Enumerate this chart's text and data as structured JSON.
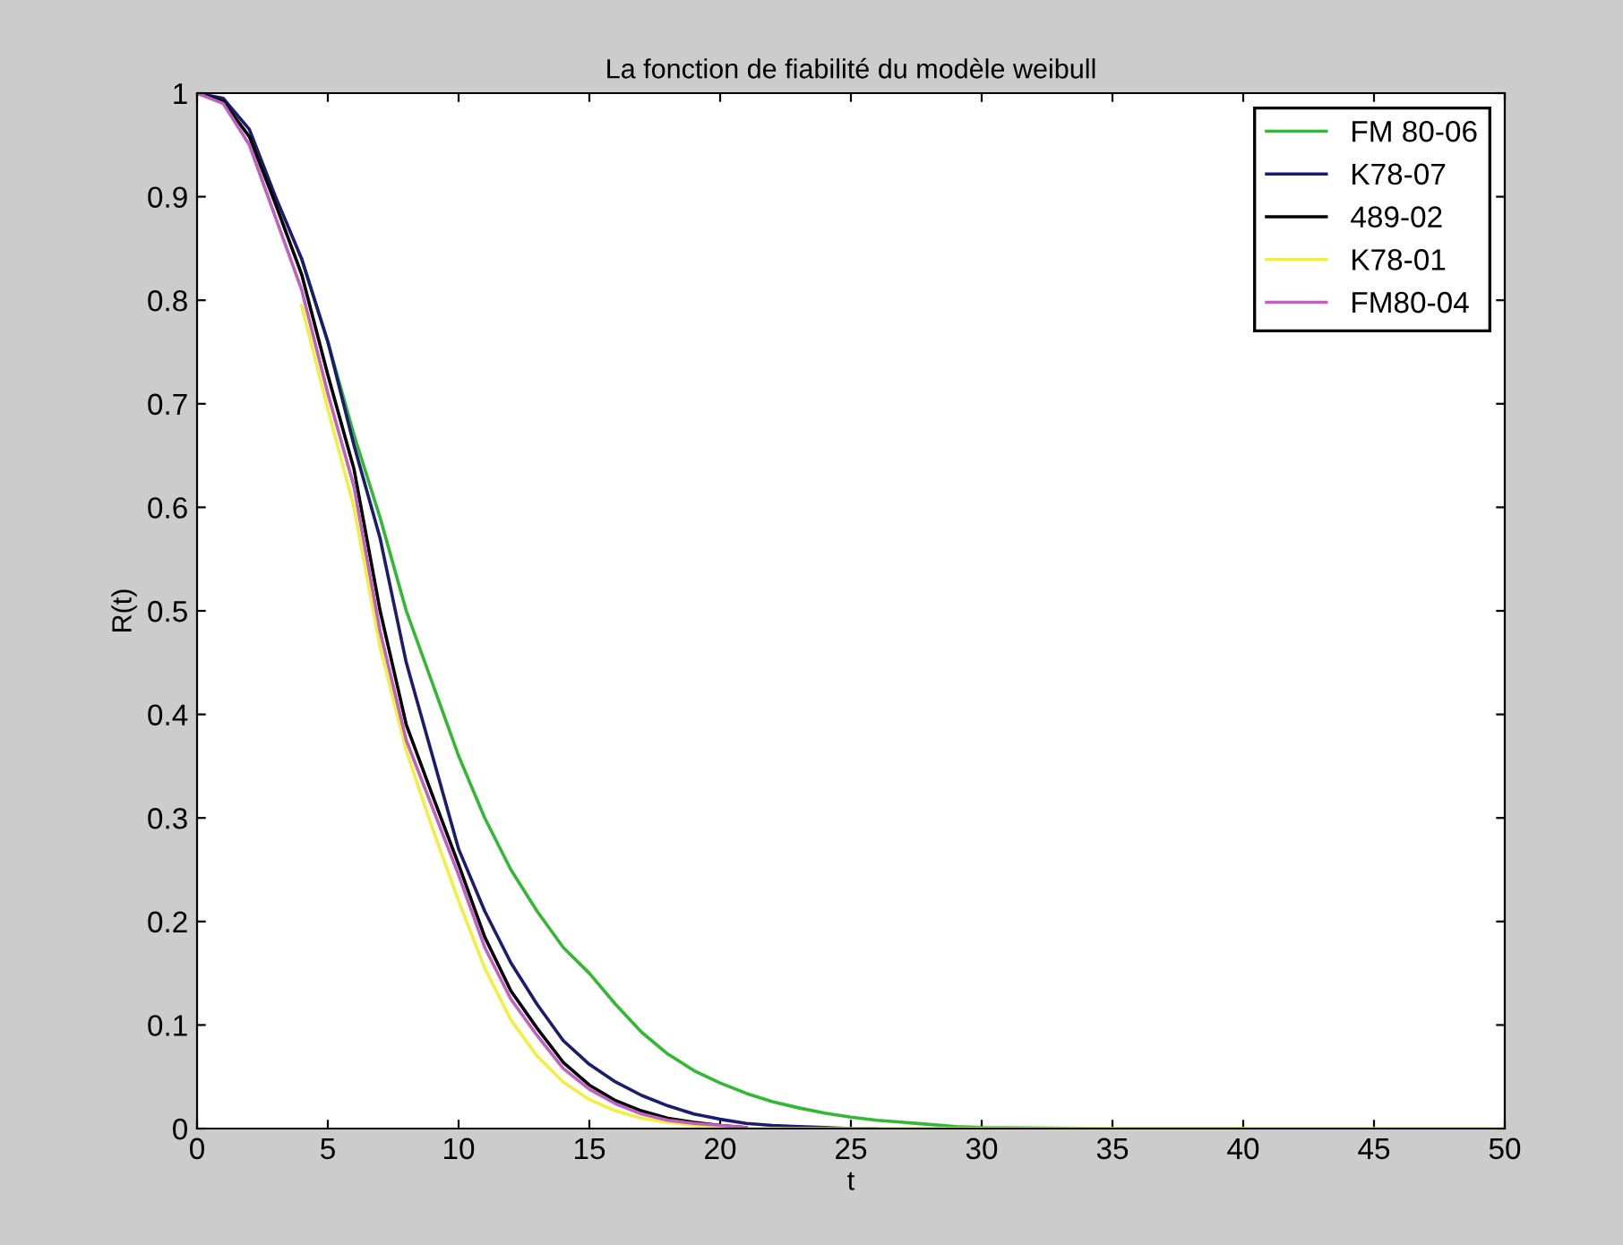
{
  "chart_data": {
    "type": "line",
    "title": "La fonction de fiabilité du modèle weibull",
    "xlabel": "t",
    "ylabel": "R(t)",
    "x": [
      0,
      1,
      2,
      3,
      4,
      5,
      6,
      7,
      8,
      9,
      10,
      11,
      12,
      13,
      14,
      15,
      16,
      17,
      18,
      19,
      20,
      21,
      22,
      23,
      24,
      25,
      26,
      27,
      28,
      29,
      30,
      35,
      40,
      45,
      50
    ],
    "series": [
      {
        "name": "FM 80-06",
        "color": "#33b833",
        "values": [
          null,
          null,
          null,
          null,
          0.84,
          0.76,
          0.67,
          0.59,
          0.5,
          0.43,
          0.36,
          0.3,
          0.25,
          0.21,
          0.175,
          0.15,
          0.12,
          0.093,
          0.072,
          0.056,
          0.044,
          0.034,
          0.026,
          0.02,
          0.015,
          0.011,
          0.008,
          0.006,
          0.004,
          0.002,
          0.001,
          0,
          0,
          null,
          null
        ]
      },
      {
        "name": "K78-07",
        "color": "#1c1c6e",
        "values": [
          1.0,
          0.995,
          0.965,
          0.9,
          0.84,
          0.76,
          0.66,
          0.57,
          0.45,
          0.36,
          0.27,
          0.21,
          0.16,
          0.12,
          0.085,
          0.062,
          0.045,
          0.032,
          0.022,
          0.014,
          0.009,
          0.005,
          0.003,
          0.002,
          0.001,
          0,
          0,
          null,
          null,
          null,
          null,
          null,
          null,
          null,
          null
        ]
      },
      {
        "name": "489-02",
        "color": "#000000",
        "values": [
          1.0,
          0.992,
          0.958,
          0.893,
          0.825,
          0.728,
          0.637,
          0.5,
          0.39,
          0.322,
          0.255,
          0.185,
          0.133,
          0.097,
          0.064,
          0.042,
          0.027,
          0.017,
          0.01,
          0.006,
          0.003,
          0.001,
          null,
          null,
          null,
          null,
          null,
          null,
          null,
          null,
          null,
          null,
          null,
          null,
          null
        ]
      },
      {
        "name": "K78-01",
        "color": "#f0f040",
        "values": [
          null,
          null,
          null,
          null,
          0.795,
          0.695,
          0.6,
          0.465,
          0.365,
          0.29,
          0.22,
          0.155,
          0.105,
          0.07,
          0.045,
          0.028,
          0.017,
          0.01,
          0.006,
          0.003,
          0.001,
          0,
          0,
          0,
          0,
          0,
          0,
          0,
          0,
          0,
          0,
          0,
          0,
          0,
          0
        ]
      },
      {
        "name": "FM80-04",
        "color": "#c060c0",
        "values": [
          1.0,
          0.99,
          0.95,
          0.88,
          0.81,
          0.71,
          0.62,
          0.48,
          0.375,
          0.31,
          0.245,
          0.175,
          0.125,
          0.09,
          0.058,
          0.038,
          0.024,
          0.014,
          0.008,
          0.005,
          0.003,
          0.001,
          null,
          null,
          null,
          null,
          null,
          null,
          null,
          null,
          null,
          null,
          null,
          null,
          null
        ]
      }
    ],
    "xlim": [
      0,
      50
    ],
    "ylim": [
      0,
      1
    ],
    "xticks": [
      0,
      5,
      10,
      15,
      20,
      25,
      30,
      35,
      40,
      45,
      50
    ],
    "yticks": [
      0,
      0.1,
      0.2,
      0.3,
      0.4,
      0.5,
      0.6,
      0.7,
      0.8,
      0.9,
      1
    ],
    "legend": "top right",
    "grid": false
  }
}
